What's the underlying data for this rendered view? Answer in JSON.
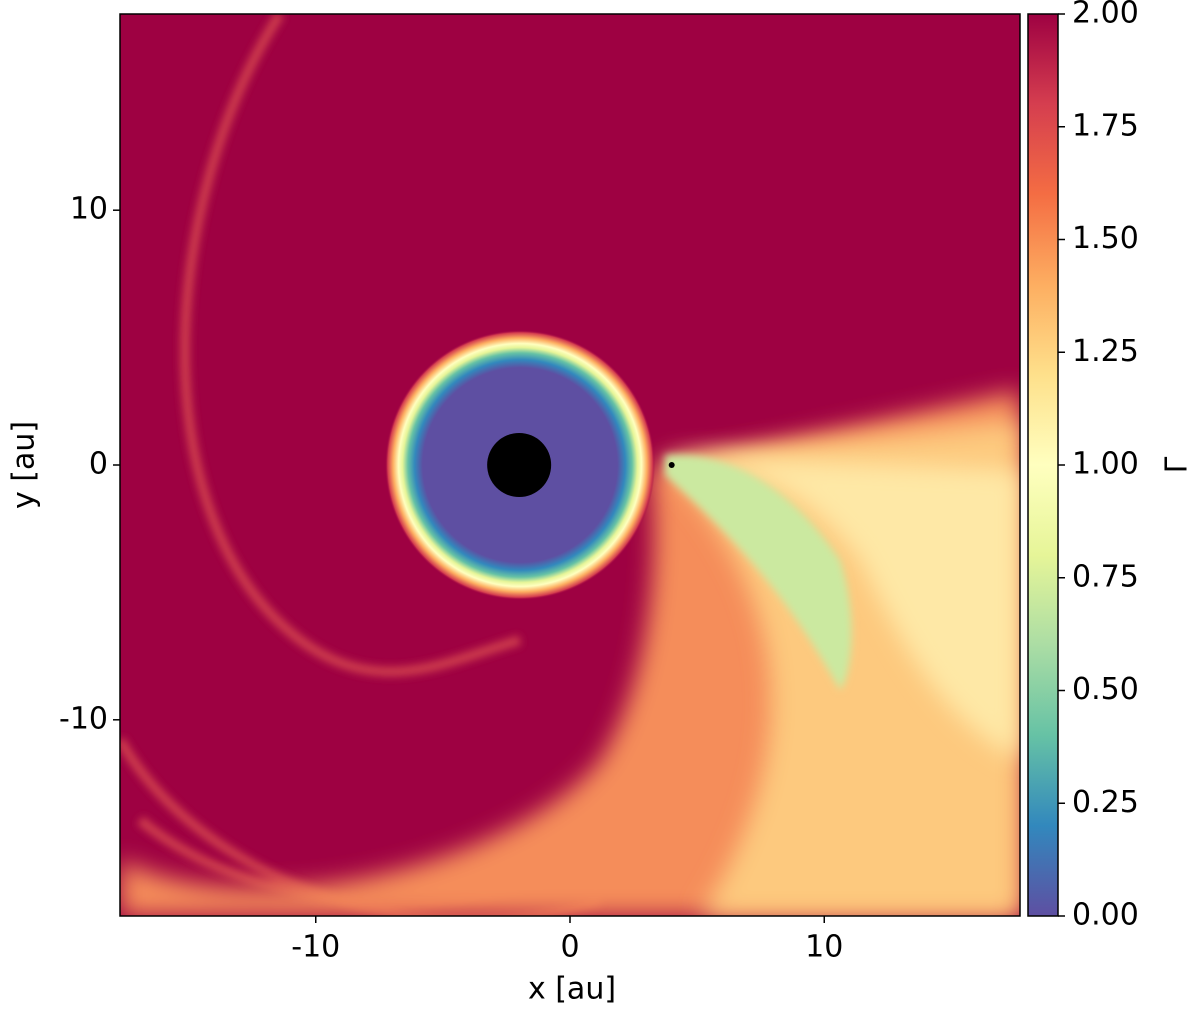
{
  "chart_data": {
    "type": "image",
    "xlabel": "x [au]",
    "ylabel": "y [au]",
    "xlim": [
      -17.7,
      17.7
    ],
    "ylim": [
      -17.7,
      17.7
    ],
    "xticks": [
      {
        "value": -10,
        "label": "-10"
      },
      0,
      10
    ],
    "yticks": [
      {
        "value": -10,
        "label": "-10"
      },
      0,
      10
    ],
    "markers": [
      {
        "x": -2,
        "y": 0
      },
      {
        "x": 4,
        "y": 0
      }
    ],
    "colormap": "Spectral",
    "colorbar": {
      "label": "Γ",
      "lim": [
        0,
        2
      ],
      "ticks": [
        {
          "value": 0,
          "label": "0.00"
        },
        {
          "value": 0.25,
          "label": "0.25"
        },
        {
          "value": 0.5,
          "label": "0.50"
        },
        {
          "value": 0.75,
          "label": "0.75"
        },
        {
          "value": 1,
          "label": "1.00"
        },
        {
          "value": 1.25,
          "label": "1.25"
        },
        {
          "value": 1.5,
          "label": "1.50"
        },
        {
          "value": 1.75,
          "label": "1.75"
        },
        {
          "value": 2,
          "label": "2.00"
        }
      ]
    }
  }
}
